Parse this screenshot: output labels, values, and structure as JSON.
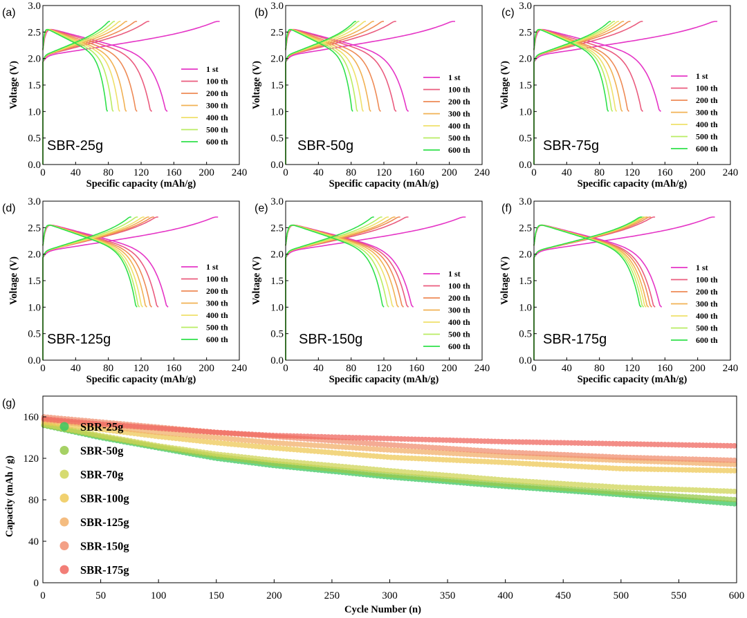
{
  "chart_data": [
    {
      "panel": "(a)",
      "tag": "SBR-25g",
      "type": "line",
      "xlabel": "Specific capacity (mAh/g)",
      "ylabel": "Voltage (V)",
      "xlim": [
        0,
        240
      ],
      "ylim": [
        0,
        3.0
      ],
      "xticks": [
        "0",
        "40",
        "80",
        "120",
        "160",
        "200",
        "240"
      ],
      "yticks": [
        "0.0",
        "0.5",
        "1.0",
        "1.5",
        "2.0",
        "2.5",
        "3.0"
      ],
      "legend_position": "right",
      "series": [
        {
          "name": "1 st",
          "color": "#e535c6",
          "discharge_capacity": 152,
          "charge_capacity": 216
        },
        {
          "name": "100 th",
          "color": "#ea5b7e",
          "discharge_capacity": 133,
          "charge_capacity": 130
        },
        {
          "name": "200 th",
          "color": "#ee8a55",
          "discharge_capacity": 115,
          "charge_capacity": 115
        },
        {
          "name": "300 th",
          "color": "#f1b153",
          "discharge_capacity": 102,
          "charge_capacity": 103
        },
        {
          "name": "400 th",
          "color": "#efe06a",
          "discharge_capacity": 94,
          "charge_capacity": 95
        },
        {
          "name": "500 th",
          "color": "#b9ec62",
          "discharge_capacity": 86,
          "charge_capacity": 88
        },
        {
          "name": "600 th",
          "color": "#2ee04a",
          "discharge_capacity": 79,
          "charge_capacity": 82
        }
      ]
    },
    {
      "panel": "(b)",
      "tag": "SBR-50g",
      "type": "line",
      "xlabel": "Specific capacity (mAh/g)",
      "ylabel": "Voltage (V)",
      "xlim": [
        0,
        240
      ],
      "ylim": [
        0,
        3.0
      ],
      "xticks": [
        "0",
        "40",
        "80",
        "120",
        "160",
        "200",
        "240"
      ],
      "yticks": [
        "0.0",
        "0.5",
        "1.0",
        "1.5",
        "2.0",
        "2.5",
        "3.0"
      ],
      "legend_position": "right",
      "series": [
        {
          "name": "1 st",
          "color": "#e535c6",
          "discharge_capacity": 150,
          "charge_capacity": 207
        },
        {
          "name": "100 th",
          "color": "#ea5b7e",
          "discharge_capacity": 135,
          "charge_capacity": 135
        },
        {
          "name": "200 th",
          "color": "#ee8a55",
          "discharge_capacity": 116,
          "charge_capacity": 120
        },
        {
          "name": "300 th",
          "color": "#f1b153",
          "discharge_capacity": 104,
          "charge_capacity": 108
        },
        {
          "name": "400 th",
          "color": "#efe06a",
          "discharge_capacity": 95,
          "charge_capacity": 98
        },
        {
          "name": "500 th",
          "color": "#b9ec62",
          "discharge_capacity": 88,
          "charge_capacity": 90
        },
        {
          "name": "600 th",
          "color": "#2ee04a",
          "discharge_capacity": 82,
          "charge_capacity": 86
        }
      ]
    },
    {
      "panel": "(c)",
      "tag": "SBR-75g",
      "type": "line",
      "xlabel": "Specific capacity (mAh/g)",
      "ylabel": "Voltage (V)",
      "xlim": [
        0,
        240
      ],
      "ylim": [
        0,
        3.0
      ],
      "xticks": [
        "0",
        "40",
        "80",
        "120",
        "160",
        "200",
        "240"
      ],
      "yticks": [
        "0.0",
        "0.5",
        "1.0",
        "1.5",
        "2.0",
        "2.5",
        "3.0"
      ],
      "legend_position": "right",
      "series": [
        {
          "name": "1 st",
          "color": "#e535c6",
          "discharge_capacity": 155,
          "charge_capacity": 224
        },
        {
          "name": "100 th",
          "color": "#ea5b7e",
          "discharge_capacity": 133,
          "charge_capacity": 133
        },
        {
          "name": "200 th",
          "color": "#ee8a55",
          "discharge_capacity": 116,
          "charge_capacity": 118
        },
        {
          "name": "300 th",
          "color": "#f1b153",
          "discharge_capacity": 108,
          "charge_capacity": 110
        },
        {
          "name": "400 th",
          "color": "#efe06a",
          "discharge_capacity": 101,
          "charge_capacity": 104
        },
        {
          "name": "500 th",
          "color": "#b9ec62",
          "discharge_capacity": 96,
          "charge_capacity": 99
        },
        {
          "name": "600 th",
          "color": "#2ee04a",
          "discharge_capacity": 91,
          "charge_capacity": 94
        }
      ]
    },
    {
      "panel": "(d)",
      "tag": "SBR-125g",
      "type": "line",
      "xlabel": "Specific capacity (mAh/g)",
      "ylabel": "Voltage (V)",
      "xlim": [
        0,
        240
      ],
      "ylim": [
        0,
        3.0
      ],
      "xticks": [
        "0",
        "40",
        "80",
        "120",
        "160",
        "200",
        "240"
      ],
      "yticks": [
        "0.0",
        "0.5",
        "1.0",
        "1.5",
        "2.0",
        "2.5",
        "3.0"
      ],
      "legend_position": "right",
      "series": [
        {
          "name": "1 st",
          "color": "#e535c6",
          "discharge_capacity": 153,
          "charge_capacity": 214
        },
        {
          "name": "100 th",
          "color": "#ea5b7e",
          "discharge_capacity": 141,
          "charge_capacity": 141
        },
        {
          "name": "200 th",
          "color": "#ee8a55",
          "discharge_capacity": 133,
          "charge_capacity": 136
        },
        {
          "name": "300 th",
          "color": "#f1b153",
          "discharge_capacity": 127,
          "charge_capacity": 130
        },
        {
          "name": "400 th",
          "color": "#efe06a",
          "discharge_capacity": 122,
          "charge_capacity": 124
        },
        {
          "name": "500 th",
          "color": "#b9ec62",
          "discharge_capacity": 118,
          "charge_capacity": 116
        },
        {
          "name": "600 th",
          "color": "#2ee04a",
          "discharge_capacity": 115,
          "charge_capacity": 108
        }
      ]
    },
    {
      "panel": "(e)",
      "tag": "SBR-150g",
      "type": "line",
      "xlabel": "Specific capacity (mAh/g)",
      "ylabel": "Voltage (V)",
      "xlim": [
        0,
        240
      ],
      "ylim": [
        0,
        3.0
      ],
      "xticks": [
        "0",
        "40",
        "80",
        "120",
        "160",
        "200",
        "240"
      ],
      "yticks": [
        "0.0",
        "0.5",
        "1.0",
        "1.5",
        "2.0",
        "2.5",
        "3.0"
      ],
      "legend_position": "right",
      "series": [
        {
          "name": "1 st",
          "color": "#e535c6",
          "discharge_capacity": 156,
          "charge_capacity": 220
        },
        {
          "name": "100 th",
          "color": "#ea5b7e",
          "discharge_capacity": 150,
          "charge_capacity": 150
        },
        {
          "name": "200 th",
          "color": "#ee8a55",
          "discharge_capacity": 144,
          "charge_capacity": 140
        },
        {
          "name": "300 th",
          "color": "#f1b153",
          "discharge_capacity": 138,
          "charge_capacity": 134
        },
        {
          "name": "400 th",
          "color": "#efe06a",
          "discharge_capacity": 132,
          "charge_capacity": 126
        },
        {
          "name": "500 th",
          "color": "#b9ec62",
          "discharge_capacity": 126,
          "charge_capacity": 118
        },
        {
          "name": "600 th",
          "color": "#2ee04a",
          "discharge_capacity": 120,
          "charge_capacity": 108
        }
      ]
    },
    {
      "panel": "(f)",
      "tag": "SBR-175g",
      "type": "line",
      "xlabel": "Specific capacity (mAh/g)",
      "ylabel": "Voltage (V)",
      "xlim": [
        0,
        240
      ],
      "ylim": [
        0,
        3.0
      ],
      "xticks": [
        "0",
        "40",
        "80",
        "120",
        "160",
        "200",
        "240"
      ],
      "yticks": [
        "0.0",
        "0.5",
        "1.0",
        "1.5",
        "2.0",
        "2.5",
        "3.0"
      ],
      "legend_position": "right",
      "series": [
        {
          "name": "1 st",
          "color": "#e535c6",
          "discharge_capacity": 156,
          "charge_capacity": 221
        },
        {
          "name": "100 th",
          "color": "#ea5b7e",
          "discharge_capacity": 148,
          "charge_capacity": 148
        },
        {
          "name": "200 th",
          "color": "#ee8a55",
          "discharge_capacity": 144,
          "charge_capacity": 143
        },
        {
          "name": "300 th",
          "color": "#f1b153",
          "discharge_capacity": 140,
          "charge_capacity": 139
        },
        {
          "name": "400 th",
          "color": "#efe06a",
          "discharge_capacity": 137,
          "charge_capacity": 136
        },
        {
          "name": "500 th",
          "color": "#b9ec62",
          "discharge_capacity": 134,
          "charge_capacity": 134
        },
        {
          "name": "600 th",
          "color": "#2ee04a",
          "discharge_capacity": 131,
          "charge_capacity": 132
        }
      ]
    },
    {
      "panel": "(g)",
      "type": "scatter",
      "xlabel": "Cycle Number (n)",
      "ylabel": "Capacity (mAh / g)",
      "xlim": [
        0,
        600
      ],
      "ylim": [
        0,
        180
      ],
      "xticks": [
        "0",
        "50",
        "100",
        "150",
        "200",
        "250",
        "300",
        "350",
        "400",
        "450",
        "500",
        "550",
        "600"
      ],
      "yticks": [
        "0",
        "40",
        "80",
        "120",
        "160"
      ],
      "legend_position": "left",
      "x": [
        0,
        50,
        100,
        150,
        200,
        300,
        400,
        500,
        600
      ],
      "series": [
        {
          "name": "SBR-25g",
          "color": "#3cc762",
          "values": [
            152,
            140,
            130,
            120,
            113,
            102,
            93,
            85,
            76
          ]
        },
        {
          "name": "SBR-50g",
          "color": "#97c94a",
          "values": [
            152,
            141,
            131,
            122,
            115,
            104,
            95,
            87,
            80
          ]
        },
        {
          "name": "SBR-70g",
          "color": "#cfd558",
          "values": [
            153,
            142,
            132,
            124,
            118,
            108,
            99,
            92,
            88
          ]
        },
        {
          "name": "SBR-100g",
          "color": "#eec957",
          "values": [
            155,
            148,
            141,
            135,
            130,
            121,
            116,
            110,
            108
          ]
        },
        {
          "name": "SBR-125g",
          "color": "#f2b06a",
          "values": [
            157,
            151,
            145,
            140,
            135,
            128,
            122,
            118,
            114
          ]
        },
        {
          "name": "SBR-150g",
          "color": "#f18f71",
          "values": [
            160,
            155,
            150,
            145,
            141,
            133,
            126,
            121,
            118
          ]
        },
        {
          "name": "SBR-175g",
          "color": "#f0675f",
          "values": [
            158,
            153,
            149,
            145,
            142,
            139,
            136,
            134,
            132
          ]
        }
      ]
    }
  ]
}
